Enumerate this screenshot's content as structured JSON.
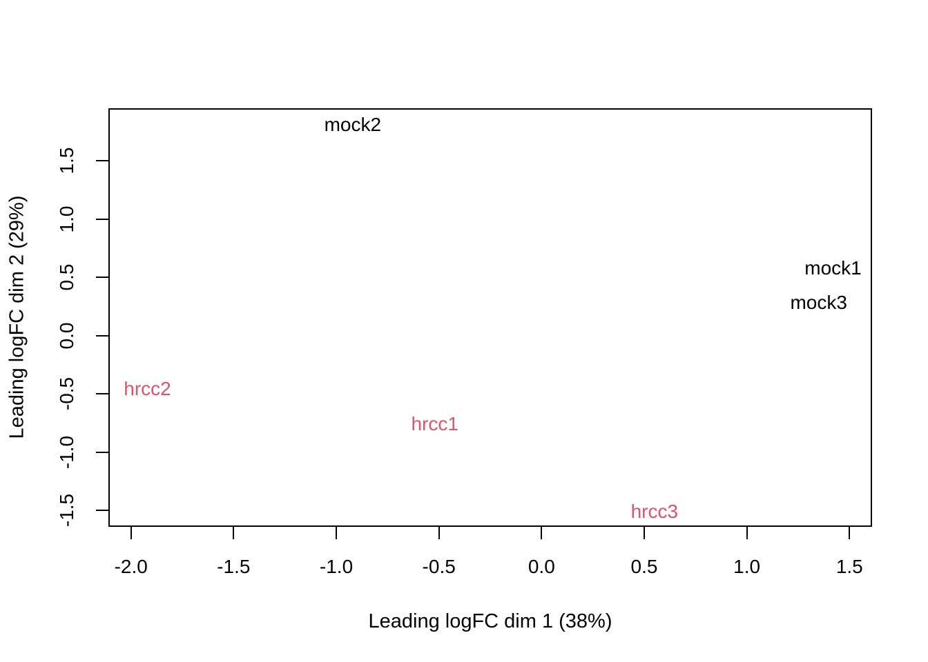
{
  "figure": {
    "background_color": "#ffffff",
    "axis_color": "#000000"
  },
  "chart_data": {
    "type": "scatter",
    "title": "",
    "xlabel": "Leading logFC dim 1 (38%)",
    "ylabel": "Leading logFC dim 2 (29%)",
    "xlim": [
      -2.11,
      1.61
    ],
    "ylim": [
      -1.64,
      1.95
    ],
    "x_ticks": [
      -2.0,
      -1.5,
      -1.0,
      -0.5,
      0.0,
      0.5,
      1.0,
      1.5
    ],
    "x_tick_labels": [
      "-2.0",
      "-1.5",
      "-1.0",
      "-0.5",
      "0.0",
      "0.5",
      "1.0",
      "1.5"
    ],
    "y_ticks": [
      -1.5,
      -1.0,
      -0.5,
      0.0,
      0.5,
      1.0,
      1.5
    ],
    "y_tick_labels": [
      "-1.5",
      "-1.0",
      "-0.5",
      "0.0",
      "0.5",
      "1.0",
      "1.5"
    ],
    "grid": false,
    "legend": null,
    "point_marker": "text-label",
    "series": [
      {
        "name": "mock",
        "color": "#000000",
        "points": [
          {
            "label": "mock2",
            "x": -0.92,
            "y": 1.81
          },
          {
            "label": "mock1",
            "x": 1.42,
            "y": 0.58
          },
          {
            "label": "mock3",
            "x": 1.35,
            "y": 0.28
          }
        ]
      },
      {
        "name": "hrcc",
        "color": "#DF536B",
        "points": [
          {
            "label": "hrcc2",
            "x": -1.92,
            "y": -0.46
          },
          {
            "label": "hrcc1",
            "x": -0.52,
            "y": -0.76
          },
          {
            "label": "hrcc3",
            "x": 0.55,
            "y": -1.51
          }
        ]
      }
    ]
  }
}
